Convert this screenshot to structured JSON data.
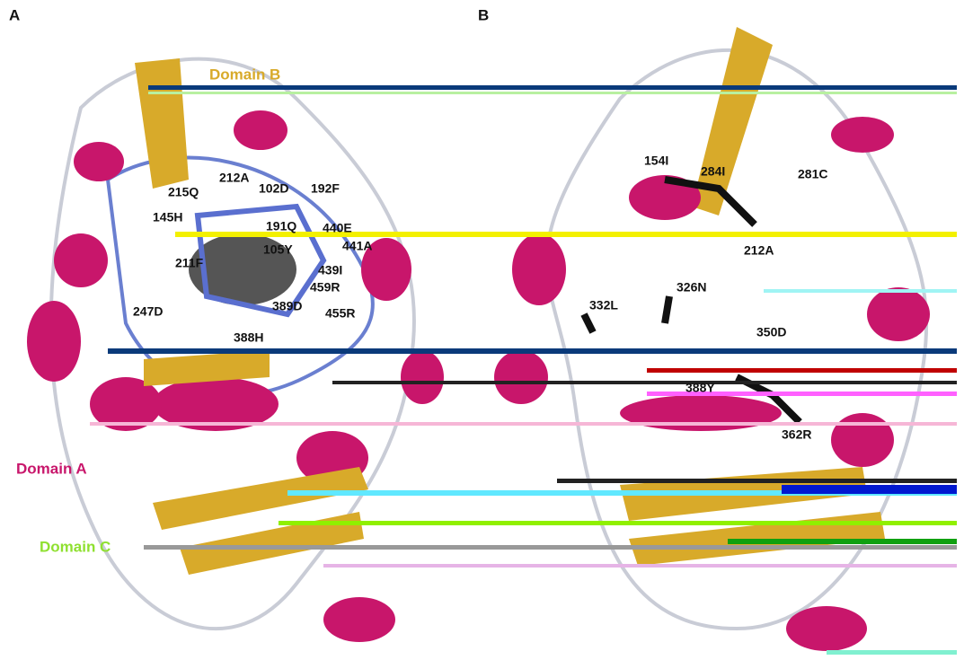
{
  "panels": [
    {
      "label": "A",
      "domains": [
        "Domain B",
        "Domain A",
        "Domain C"
      ],
      "residues": [
        "212A",
        "215Q",
        "102D",
        "192F",
        "145H",
        "191Q",
        "440E",
        "105Y",
        "441A",
        "211F",
        "439I",
        "459R",
        "247D",
        "389D",
        "455R",
        "388H"
      ]
    },
    {
      "label": "B",
      "domains": [],
      "residues": [
        "154I",
        "284I",
        "281C",
        "212A",
        "332L",
        "326N",
        "350D",
        "388Y",
        "362R"
      ]
    }
  ]
}
